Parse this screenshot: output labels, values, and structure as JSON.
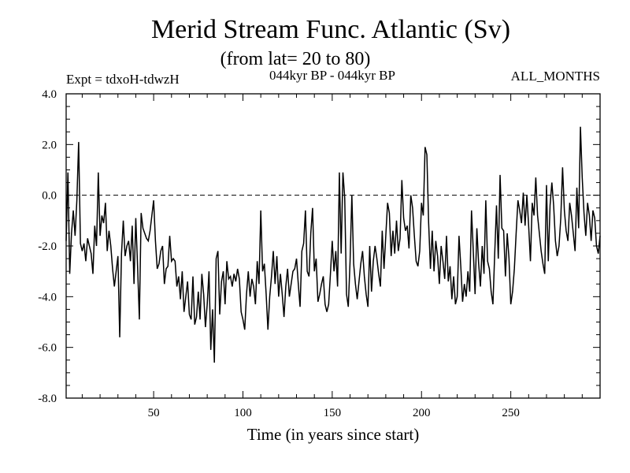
{
  "chart_data": {
    "type": "line",
    "title": "Merid Stream Func. Atlantic (Sv)",
    "subtitle": "(from lat= 20 to 80)",
    "annotations": {
      "left": "Expt = tdxoH-tdwzH",
      "center": "044kyr BP - 044kyr BP",
      "right": "ALL_MONTHS"
    },
    "xlabel": "Time (in years since start)",
    "ylabel": "",
    "xlim": [
      1,
      300
    ],
    "ylim": [
      -8,
      4
    ],
    "x_ticks": [
      50,
      100,
      150,
      200,
      250
    ],
    "y_ticks": [
      -8,
      -6,
      -4,
      -2,
      0,
      2,
      4
    ],
    "x_tick_labels": [
      "50",
      "100",
      "150",
      "200",
      "250"
    ],
    "y_tick_labels": [
      "-8.0",
      "-6.0",
      "-4.0",
      "-2.0",
      "0.0",
      "2.0",
      "4.0"
    ],
    "grid": false,
    "reference_line": 0,
    "series": [
      {
        "start_x": 1,
        "step": 1,
        "values": [
          -1.8,
          0.9,
          -3.1,
          -1.5,
          -0.6,
          -1.6,
          -0.2,
          2.1,
          -1.9,
          -2.2,
          -1.9,
          -2.6,
          -1.7,
          -2.0,
          -2.3,
          -3.1,
          -1.2,
          -2.0,
          0.9,
          -1.6,
          -0.8,
          -1.1,
          -0.3,
          -2.2,
          -1.4,
          -2.0,
          -2.9,
          -3.6,
          -3.0,
          -2.4,
          -5.6,
          -2.3,
          -1.0,
          -2.4,
          -2.0,
          -1.8,
          -2.6,
          -1.2,
          -3.5,
          -0.9,
          -2.8,
          -4.9,
          -0.7,
          -1.3,
          -1.5,
          -1.7,
          -1.8,
          -1.4,
          -0.8,
          -0.2,
          -1.8,
          -2.9,
          -2.7,
          -2.2,
          -2.0,
          -3.5,
          -2.9,
          -2.8,
          -1.6,
          -2.6,
          -2.5,
          -2.6,
          -3.6,
          -3.2,
          -4.1,
          -3.0,
          -4.6,
          -4.0,
          -3.4,
          -4.7,
          -4.9,
          -3.2,
          -5.1,
          -4.8,
          -3.8,
          -4.9,
          -3.1,
          -3.9,
          -5.2,
          -4.3,
          -3.0,
          -6.1,
          -4.5,
          -6.6,
          -2.5,
          -2.2,
          -4.7,
          -3.4,
          -3.0,
          -4.3,
          -2.6,
          -3.3,
          -3.2,
          -3.6,
          -3.1,
          -3.4,
          -2.9,
          -3.3,
          -4.6,
          -4.9,
          -5.3,
          -3.9,
          -3.0,
          -4.0,
          -3.3,
          -3.6,
          -4.3,
          -2.6,
          -3.5,
          -0.6,
          -3.0,
          -2.7,
          -3.9,
          -5.3,
          -4.0,
          -3.2,
          -2.2,
          -3.5,
          -2.4,
          -4.0,
          -3.1,
          -3.9,
          -4.8,
          -3.6,
          -2.9,
          -4.0,
          -3.5,
          -3.0,
          -2.9,
          -2.5,
          -3.5,
          -4.4,
          -2.2,
          -1.9,
          -0.6,
          -3.0,
          -3.2,
          -1.5,
          -0.5,
          -3.0,
          -2.5,
          -4.2,
          -3.9,
          -3.5,
          -3.2,
          -4.3,
          -4.6,
          -4.3,
          -3.1,
          -1.8,
          -3.0,
          -2.2,
          -3.6,
          0.9,
          -2.3,
          0.9,
          -0.1,
          -3.9,
          -4.4,
          -2.6,
          0.0,
          -2.7,
          -3.5,
          -4.1,
          -3.4,
          -2.7,
          -2.2,
          -3.2,
          -3.9,
          -4.4,
          -2.0,
          -3.8,
          -2.6,
          -2.0,
          -2.5,
          -3.1,
          -3.6,
          -1.4,
          -2.9,
          -1.6,
          -0.3,
          -0.7,
          -2.4,
          -1.4,
          -2.3,
          -1.0,
          -2.2,
          -1.7,
          0.6,
          -0.9,
          -1.4,
          -1.2,
          -2.1,
          0.0,
          -0.5,
          -1.6,
          -2.6,
          -2.8,
          -2.2,
          -0.3,
          -0.8,
          1.9,
          1.6,
          -1.1,
          -2.9,
          -1.4,
          -3.0,
          -1.8,
          -2.4,
          -3.5,
          -2.0,
          -2.6,
          -3.3,
          -1.6,
          -3.4,
          -2.8,
          -4.1,
          -3.2,
          -4.3,
          -4.0,
          -1.6,
          -2.8,
          -4.2,
          -3.5,
          -4.0,
          -3.0,
          -3.8,
          -0.6,
          -2.2,
          -3.9,
          -1.3,
          -2.7,
          -3.6,
          -2.0,
          -3.1,
          -0.2,
          -2.6,
          -2.9,
          -3.8,
          -4.3,
          -2.3,
          -0.4,
          -2.5,
          0.8,
          -1.3,
          -1.4,
          -3.2,
          -1.5,
          -2.5,
          -4.3,
          -3.8,
          -2.9,
          -1.5,
          -0.2,
          -0.6,
          -1.1,
          0.1,
          -1.2,
          0.0,
          -1.2,
          -2.6,
          -0.3,
          -0.8,
          0.7,
          -0.8,
          -1.5,
          -2.2,
          -2.7,
          -3.1,
          0.4,
          -2.6,
          -0.4,
          0.5,
          -0.4,
          -1.8,
          -2.4,
          -2.0,
          -0.9,
          1.1,
          -0.6,
          -1.4,
          -1.8,
          -0.3,
          -0.8,
          -1.5,
          -2.2,
          0.3,
          -1.3,
          2.7,
          0.7,
          -0.7,
          -1.6,
          -0.3,
          -0.8,
          -1.8,
          -0.6,
          -0.9,
          -2.0,
          -2.3,
          -1.6
        ]
      }
    ]
  }
}
